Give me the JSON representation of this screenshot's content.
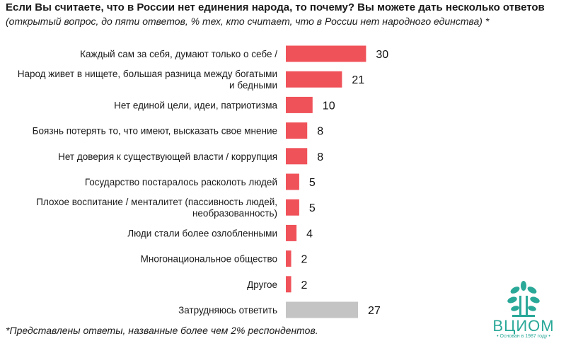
{
  "title": "Если Вы считаете, что в России нет единения народа, то почему? Вы можете дать несколько ответов",
  "subtitle": "(открытый вопрос, до пяти ответов, % тех, кто считает, что в России нет народного единства) *",
  "footnote": "*Представлены ответы, названные более чем 2% респондентов.",
  "logo": {
    "name": "ВЦИОМ",
    "tagline": "• Основан в 1987 году •",
    "color": "#2aa898"
  },
  "colors": {
    "bar": "#f0525a",
    "bar_neutral": "#c4c4c4"
  },
  "chart_data": {
    "type": "bar",
    "orientation": "horizontal",
    "title": "",
    "xlabel": "",
    "ylabel": "",
    "grid": false,
    "categories": [
      [
        "Каждый сам за себя, думают только о себе /"
      ],
      [
        "Народ живет в нищете, большая разница между богатыми",
        "и бедными"
      ],
      [
        "Нет единой цели, идеи, патриотизма"
      ],
      [
        "Боязнь потерять то, что имеют, высказать свое мнение"
      ],
      [
        "Нет доверия к существующей власти / коррупция"
      ],
      [
        "Государство постаралось расколоть людей"
      ],
      [
        "Плохое воспитание / менталитет (пассивность людей,",
        "необразованность)"
      ],
      [
        "Люди стали более озлобленными"
      ],
      [
        "Многонациональное общество"
      ],
      [
        "Другое"
      ],
      [
        "Затрудняюсь ответить"
      ]
    ],
    "values": [
      30,
      21,
      10,
      8,
      8,
      5,
      5,
      4,
      2,
      2,
      27
    ],
    "bar_colors": [
      "#f0525a",
      "#f0525a",
      "#f0525a",
      "#f0525a",
      "#f0525a",
      "#f0525a",
      "#f0525a",
      "#f0525a",
      "#f0525a",
      "#f0525a",
      "#c4c4c4"
    ]
  }
}
